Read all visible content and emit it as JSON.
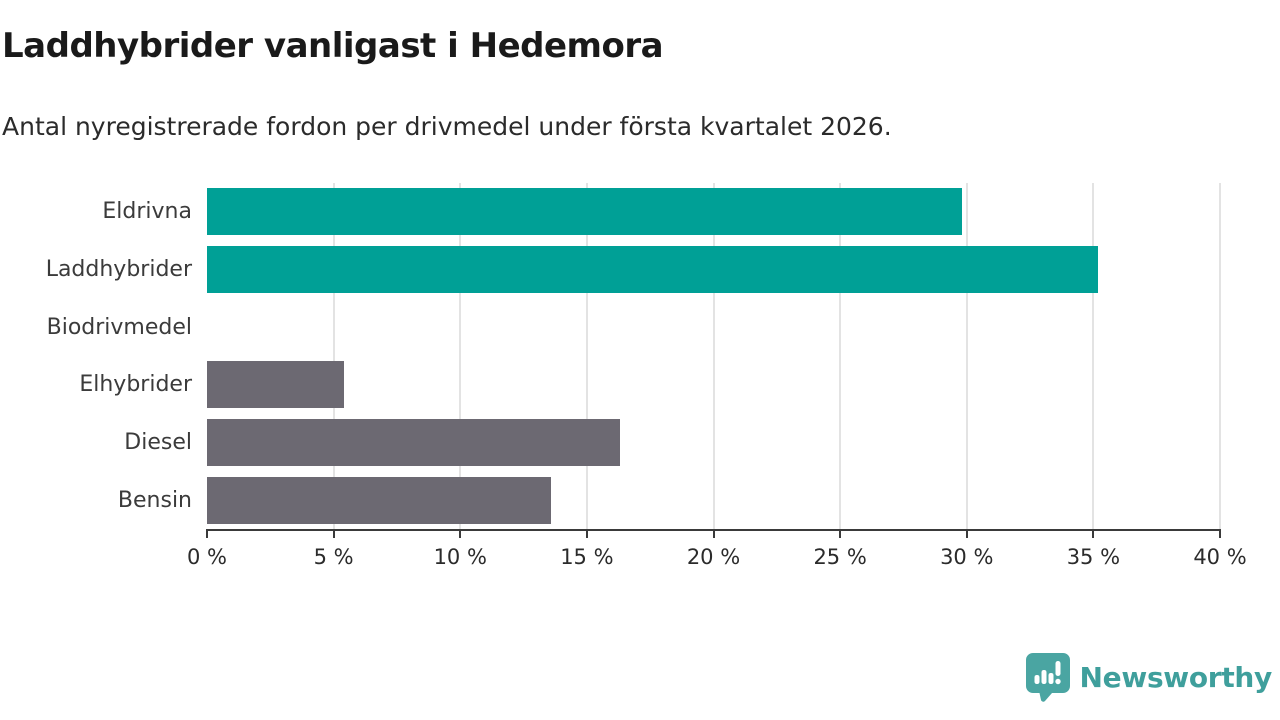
{
  "header": {
    "title": "Laddhybrider vanligast i Hedemora",
    "subtitle": "Antal nyregistrerade fordon per drivmedel under första kvartalet 2026."
  },
  "chart_data": {
    "type": "bar",
    "orientation": "horizontal",
    "title": "Laddhybrider vanligast i Hedemora",
    "categories": [
      "Eldrivna",
      "Laddhybrider",
      "Biodrivmedel",
      "Elhybrider",
      "Diesel",
      "Bensin"
    ],
    "values": [
      29.8,
      35.2,
      0,
      5.4,
      16.3,
      13.6
    ],
    "unit": "%",
    "xlim": [
      0,
      40
    ],
    "x_ticks": [
      0,
      5,
      10,
      15,
      20,
      25,
      30,
      35,
      40
    ],
    "x_tick_labels": [
      "0 %",
      "5 %",
      "10 %",
      "15 %",
      "20 %",
      "25 %",
      "30 %",
      "35 %",
      "40 %"
    ],
    "bar_colors": [
      "#00a096",
      "#00a096",
      "#00a096",
      "#6c6972",
      "#6c6972",
      "#6c6972"
    ],
    "grid": true,
    "legend": "none"
  },
  "colors": {
    "accent_teal": "#00a096",
    "neutral_gray": "#6c6972",
    "gridline": "#e3e3e3",
    "axis": "#3a3a3a",
    "title_text": "#1a1a1a",
    "body_text": "#2b2b2b",
    "brand_teal": "#3f9f9c",
    "logo_bubble": "#4aa5a2"
  },
  "footer": {
    "brand": "Newsworthy"
  }
}
